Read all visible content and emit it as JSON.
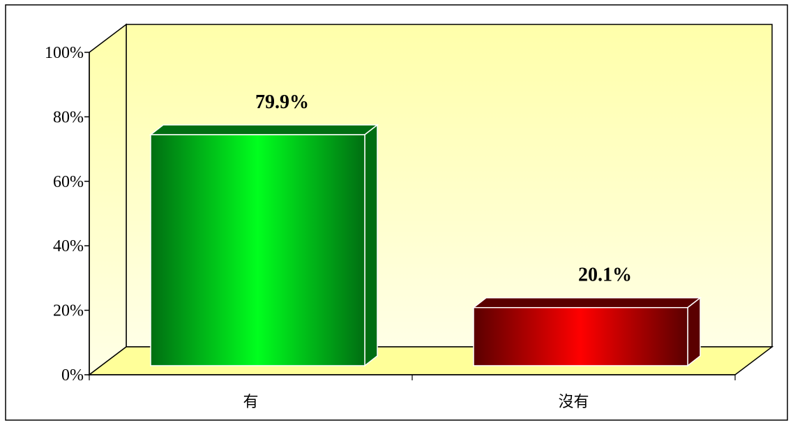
{
  "chart_data": {
    "type": "bar",
    "categories": [
      "有",
      "沒有"
    ],
    "values": [
      79.9,
      20.1
    ],
    "data_labels": [
      "79.9%",
      "20.1%"
    ],
    "y_ticks": [
      "0%",
      "20%",
      "40%",
      "60%",
      "80%",
      "100%"
    ],
    "ylim": [
      0,
      100
    ],
    "title": "",
    "xlabel": "",
    "ylabel": "",
    "grid": false,
    "legend": "none",
    "three_d": true,
    "colors": {
      "plot_background": "#FFFFAA",
      "plot_background_light": "#FFFFE6",
      "floor": "#FFFF99",
      "bar_1_center": "#00FF1E",
      "bar_1_edge": "#006E12",
      "bar_2_center": "#FF0000",
      "bar_2_edge": "#5A0000"
    }
  }
}
